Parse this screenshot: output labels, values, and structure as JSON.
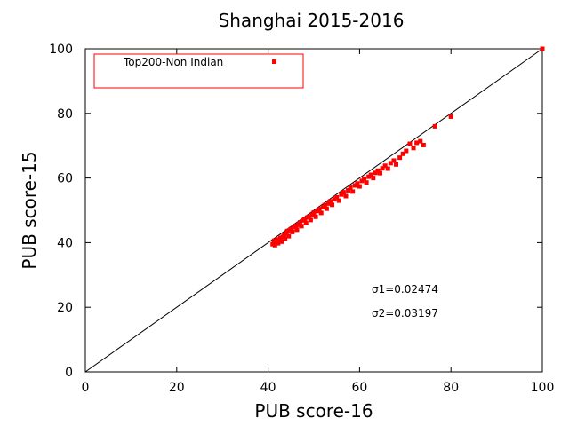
{
  "chart_data": {
    "type": "scatter",
    "title": "Shanghai 2015-2016",
    "xlabel": "PUB score-16",
    "ylabel": "PUB score-15",
    "xlim": [
      0,
      100
    ],
    "ylim": [
      0,
      100
    ],
    "x_ticks": [
      "0",
      "20",
      "40",
      "60",
      "80",
      "100"
    ],
    "y_ticks": [
      "0",
      "20",
      "40",
      "60",
      "80",
      "100"
    ],
    "grid": false,
    "legend_position": "top-left",
    "reference_line": {
      "from": [
        0,
        0
      ],
      "to": [
        100,
        100
      ]
    },
    "annotations": [
      "σ1=0.02474",
      "σ2=0.03197"
    ],
    "series": [
      {
        "name": "Top200-Non Indian",
        "color": "#ff0000",
        "points": [
          [
            41.0,
            39.5
          ],
          [
            41.3,
            40.6
          ],
          [
            41.5,
            39.2
          ],
          [
            41.8,
            40.1
          ],
          [
            42.0,
            41.0
          ],
          [
            42.2,
            39.8
          ],
          [
            42.5,
            40.7
          ],
          [
            42.7,
            41.5
          ],
          [
            43.0,
            40.3
          ],
          [
            43.2,
            41.8
          ],
          [
            43.5,
            42.5
          ],
          [
            43.7,
            41.2
          ],
          [
            44.0,
            42.9
          ],
          [
            44.2,
            43.6
          ],
          [
            44.5,
            42.0
          ],
          [
            44.8,
            43.9
          ],
          [
            45.0,
            44.2
          ],
          [
            45.3,
            43.3
          ],
          [
            45.6,
            44.8
          ],
          [
            46.0,
            45.2
          ],
          [
            46.3,
            44.0
          ],
          [
            46.6,
            45.5
          ],
          [
            47.0,
            46.3
          ],
          [
            47.3,
            45.1
          ],
          [
            47.6,
            46.9
          ],
          [
            48.0,
            47.2
          ],
          [
            48.3,
            46.1
          ],
          [
            48.6,
            47.8
          ],
          [
            49.0,
            48.1
          ],
          [
            49.3,
            47.0
          ],
          [
            49.6,
            48.7
          ],
          [
            50.0,
            49.3
          ],
          [
            50.4,
            48.0
          ],
          [
            50.8,
            49.8
          ],
          [
            51.2,
            50.4
          ],
          [
            51.6,
            49.2
          ],
          [
            52.0,
            51.0
          ],
          [
            52.4,
            51.6
          ],
          [
            52.8,
            50.5
          ],
          [
            53.2,
            52.1
          ],
          [
            53.6,
            52.8
          ],
          [
            54.0,
            51.7
          ],
          [
            54.5,
            53.4
          ],
          [
            55.0,
            54.0
          ],
          [
            55.5,
            53.0
          ],
          [
            56.0,
            54.9
          ],
          [
            56.5,
            55.6
          ],
          [
            57.0,
            54.4
          ],
          [
            57.5,
            56.2
          ],
          [
            58.0,
            57.0
          ],
          [
            58.5,
            55.8
          ],
          [
            59.0,
            57.7
          ],
          [
            59.5,
            58.3
          ],
          [
            60.0,
            57.4
          ],
          [
            60.5,
            59.1
          ],
          [
            61.0,
            59.8
          ],
          [
            61.5,
            58.6
          ],
          [
            62.0,
            60.4
          ],
          [
            62.5,
            61.0
          ],
          [
            63.0,
            60.0
          ],
          [
            63.5,
            61.6
          ],
          [
            64.0,
            62.3
          ],
          [
            64.5,
            61.5
          ],
          [
            65.0,
            63.0
          ],
          [
            65.6,
            63.8
          ],
          [
            66.2,
            62.9
          ],
          [
            66.8,
            64.6
          ],
          [
            67.5,
            65.4
          ],
          [
            68.0,
            64.2
          ],
          [
            68.8,
            66.3
          ],
          [
            69.5,
            67.5
          ],
          [
            70.2,
            68.4
          ],
          [
            71.0,
            70.6
          ],
          [
            71.8,
            69.3
          ],
          [
            72.5,
            70.9
          ],
          [
            73.3,
            71.4
          ],
          [
            74.0,
            70.2
          ],
          [
            76.5,
            76.0
          ],
          [
            80.0,
            79.0
          ],
          [
            100.0,
            100.0
          ]
        ]
      }
    ]
  }
}
